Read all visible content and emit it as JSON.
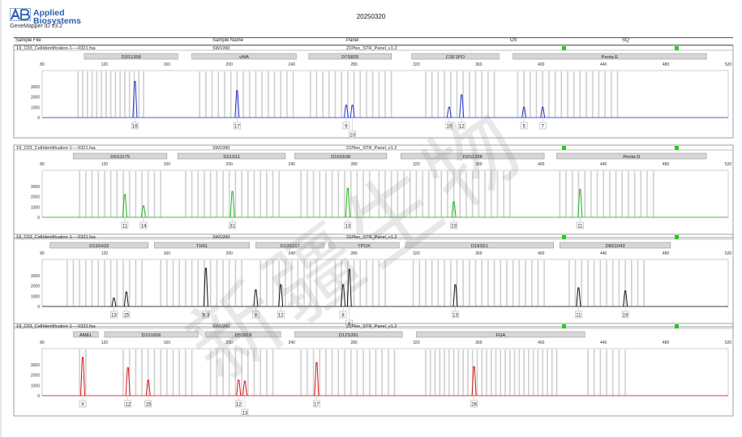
{
  "header": {
    "brand_line1": "Applied",
    "brand_line2": "Biosystems",
    "software": "GeneMapper ID v3.2",
    "report_title": "20250320",
    "columns": [
      "Sample File",
      "Sample Name",
      "Panel",
      "OS",
      "SQ"
    ]
  },
  "watermark_text": "新疆生物",
  "x_axis_ticks": [
    "80",
    "120",
    "160",
    "200",
    "240",
    "280",
    "320",
    "360",
    "400",
    "440",
    "480",
    "520"
  ],
  "panels": [
    {
      "sample_file": "19_C03_CellIdentification-1----0321.fsa",
      "sample_name": "SW1990",
      "panel_name": "21Plex_STR_Panel_v1.2",
      "color": "#2233cc",
      "y_ticks": [
        "3000",
        "2000",
        "1000",
        "0"
      ],
      "markers": [
        "D3S1358",
        "vWA",
        "D7S820",
        "CSF1PO",
        "Penta E"
      ],
      "alleles": [
        "16",
        "17",
        "9",
        "10",
        "10",
        "12",
        "5",
        "7"
      ]
    },
    {
      "sample_file": "19_C03_CellIdentification-1----0321.fsa",
      "sample_name": "SW1990",
      "panel_name": "21Plex_STR_Panel_v1.2",
      "color": "#20b020",
      "y_ticks": [
        "3000",
        "2000",
        "1000",
        "0"
      ],
      "markers": [
        "D6S1175",
        "D21S11",
        "D16S539",
        "D2S1338",
        "Penta D"
      ],
      "alleles": [
        "11",
        "14",
        "31",
        "13",
        "23",
        "11"
      ]
    },
    {
      "sample_file": "19_C03_CellIdentification-1----0321.fsa",
      "sample_name": "SW1990",
      "panel_name": "21Plex_STR_Panel_v1.2",
      "color": "#111111",
      "y_ticks": [
        "3000",
        "2000",
        "1000",
        "0"
      ],
      "markers": [
        "D19S433",
        "TH01",
        "D13S317",
        "TPOX",
        "D18S51",
        "D8S1043"
      ],
      "alleles": [
        "13",
        "15",
        "9.3",
        "8",
        "12",
        "8",
        "9",
        "13",
        "11",
        "19"
      ]
    },
    {
      "sample_file": "19_C03_CellIdentification-1----0321.fsa",
      "sample_name": "SW1990",
      "panel_name": "21Plex_STR_Panel_v1.2",
      "color": "#dd1111",
      "y_ticks": [
        "3000",
        "2000",
        "1000",
        "0"
      ],
      "markers": [
        "AMEL",
        "D1S1656",
        "D5S818",
        "D12S391",
        "FGA"
      ],
      "alleles": [
        "X",
        "12",
        "15",
        "12",
        "13",
        "17",
        "26"
      ]
    }
  ],
  "chart_data": [
    {
      "type": "line",
      "title": "",
      "channel": "blue",
      "xlim": [
        80,
        520
      ],
      "ylim": [
        0,
        4000
      ],
      "markers": [
        {
          "name": "D3S1358",
          "range": [
            107,
            167
          ]
        },
        {
          "name": "vWA",
          "range": [
            176,
            243
          ]
        },
        {
          "name": "D7S820",
          "range": [
            251,
            304
          ]
        },
        {
          "name": "CSF1PO",
          "range": [
            317,
            373
          ]
        },
        {
          "name": "Penta E",
          "range": [
            382,
            506
          ]
        }
      ],
      "peaks": [
        {
          "allele": "16",
          "x": 139.5,
          "height": 3500
        },
        {
          "allele": "17",
          "x": 205,
          "height": 2600
        },
        {
          "allele": "9",
          "x": 275,
          "height": 1200
        },
        {
          "allele": "10",
          "x": 279,
          "height": 1200
        },
        {
          "allele": "10",
          "x": 341,
          "height": 1000
        },
        {
          "allele": "12",
          "x": 349,
          "height": 2200
        },
        {
          "allele": "5",
          "x": 389,
          "height": 1000
        },
        {
          "allele": "7",
          "x": 401,
          "height": 1000
        }
      ],
      "bin_positions": [
        103,
        106,
        109,
        112,
        115,
        118,
        121,
        124,
        127,
        130,
        133,
        136,
        139,
        142,
        145,
        181,
        185,
        189,
        193,
        197,
        201,
        205,
        209,
        213,
        217,
        221,
        225,
        229,
        233,
        237,
        241,
        252,
        256,
        260,
        264,
        268,
        272,
        276,
        280,
        284,
        288,
        292,
        296,
        300,
        304,
        326,
        330,
        334,
        338,
        342,
        346,
        350,
        354,
        358,
        362,
        366,
        370,
        385,
        389,
        393,
        397,
        401,
        405,
        409,
        413,
        417,
        421,
        425,
        429,
        433,
        437,
        441,
        445,
        449
      ]
    },
    {
      "type": "line",
      "title": "",
      "channel": "green",
      "xlim": [
        80,
        520
      ],
      "ylim": [
        0,
        4000
      ],
      "markers": [
        {
          "name": "D6S1175",
          "range": [
            100,
            160
          ]
        },
        {
          "name": "D21S11",
          "range": [
            167,
            236
          ]
        },
        {
          "name": "D16S539",
          "range": [
            242,
            301
          ]
        },
        {
          "name": "D2S1338",
          "range": [
            310,
            402
          ]
        },
        {
          "name": "Penta D",
          "range": [
            410,
            506
          ]
        }
      ],
      "peaks": [
        {
          "allele": "11",
          "x": 133,
          "height": 2200
        },
        {
          "allele": "14",
          "x": 145,
          "height": 1100
        },
        {
          "allele": "31",
          "x": 202,
          "height": 2500
        },
        {
          "allele": "13",
          "x": 276,
          "height": 2800
        },
        {
          "allele": "23",
          "x": 344,
          "height": 1500
        },
        {
          "allele": "11",
          "x": 425,
          "height": 2700
        }
      ],
      "bin_positions": [
        104,
        108,
        112,
        116,
        120,
        124,
        128,
        132,
        136,
        140,
        144,
        148,
        152,
        156,
        172,
        176,
        180,
        184,
        188,
        192,
        196,
        200,
        204,
        208,
        212,
        216,
        220,
        224,
        228,
        232,
        246,
        250,
        254,
        258,
        262,
        266,
        270,
        274,
        278,
        282,
        286,
        290,
        296,
        300,
        304,
        308,
        312,
        316,
        320,
        324,
        328,
        332,
        336,
        340,
        344,
        348,
        352,
        356,
        360,
        364,
        368,
        372,
        376,
        380,
        412,
        416,
        420,
        424,
        428,
        432,
        436,
        440,
        444,
        448,
        452,
        456,
        460,
        464,
        468,
        472
      ]
    },
    {
      "type": "line",
      "title": "",
      "channel": "yellow",
      "xlim": [
        80,
        520
      ],
      "ylim": [
        0,
        4000
      ],
      "markers": [
        {
          "name": "D19S433",
          "range": [
            85,
            148
          ]
        },
        {
          "name": "TH01",
          "range": [
            152,
            213
          ]
        },
        {
          "name": "D13S317",
          "range": [
            217,
            261
          ]
        },
        {
          "name": "TPOX",
          "range": [
            264,
            309
          ]
        },
        {
          "name": "D18S51",
          "range": [
            313,
            408
          ]
        },
        {
          "name": "D8S1043",
          "range": [
            412,
            483
          ]
        }
      ],
      "peaks": [
        {
          "allele": "13",
          "x": 126,
          "height": 800
        },
        {
          "allele": "15",
          "x": 134,
          "height": 1400
        },
        {
          "allele": "9.3",
          "x": 185,
          "height": 3700
        },
        {
          "allele": "8",
          "x": 217,
          "height": 1600
        },
        {
          "allele": "12",
          "x": 233,
          "height": 2100
        },
        {
          "allele": "8",
          "x": 273,
          "height": 2100
        },
        {
          "allele": "9",
          "x": 277,
          "height": 3600
        },
        {
          "allele": "13",
          "x": 345,
          "height": 2100
        },
        {
          "allele": "11",
          "x": 424,
          "height": 1800
        },
        {
          "allele": "19",
          "x": 454,
          "height": 1500
        }
      ],
      "bin_positions": [
        96,
        100,
        104,
        108,
        112,
        116,
        120,
        124,
        128,
        132,
        136,
        140,
        144,
        156,
        160,
        164,
        168,
        172,
        176,
        180,
        184,
        188,
        192,
        196,
        200,
        204,
        208,
        220,
        224,
        228,
        232,
        236,
        240,
        244,
        248,
        252,
        256,
        268,
        272,
        276,
        280,
        284,
        288,
        292,
        296,
        300,
        318,
        322,
        326,
        330,
        334,
        338,
        342,
        346,
        350,
        354,
        358,
        362,
        366,
        370,
        374,
        378,
        382,
        386,
        390,
        394,
        398,
        402,
        418,
        422,
        426,
        430,
        434,
        438,
        442,
        446,
        450,
        454,
        458,
        462,
        466
      ]
    },
    {
      "type": "line",
      "title": "",
      "channel": "red",
      "xlim": [
        80,
        520
      ],
      "ylim": [
        0,
        4000
      ],
      "markers": [
        {
          "name": "AMEL",
          "range": [
            100,
            116
          ]
        },
        {
          "name": "D1S1656",
          "range": [
            120,
            180
          ]
        },
        {
          "name": "D5S818",
          "range": [
            185,
            233
          ]
        },
        {
          "name": "D12S391",
          "range": [
            242,
            311
          ]
        },
        {
          "name": "FGA",
          "range": [
            320,
            428
          ]
        }
      ],
      "peaks": [
        {
          "allele": "X",
          "x": 106,
          "height": 3700
        },
        {
          "allele": "12",
          "x": 135,
          "height": 2700
        },
        {
          "allele": "15",
          "x": 148,
          "height": 1500
        },
        {
          "allele": "12",
          "x": 206,
          "height": 1500
        },
        {
          "allele": "13",
          "x": 210,
          "height": 1400
        },
        {
          "allele": "17",
          "x": 256,
          "height": 3200
        },
        {
          "allele": "26",
          "x": 357,
          "height": 2800
        }
      ],
      "bin_positions": [
        104,
        108,
        132,
        136,
        140,
        144,
        148,
        152,
        156,
        160,
        164,
        168,
        172,
        176,
        188,
        192,
        196,
        200,
        204,
        208,
        212,
        216,
        220,
        224,
        228,
        246,
        250,
        254,
        258,
        262,
        266,
        270,
        274,
        278,
        282,
        286,
        290,
        294,
        298,
        302,
        306,
        326,
        329,
        332,
        335,
        338,
        341,
        344,
        347,
        350,
        353,
        356,
        359,
        362,
        365,
        368,
        371,
        374,
        377,
        380,
        383,
        386,
        389,
        392,
        395,
        398,
        401,
        404,
        407,
        410,
        430,
        434,
        438,
        442,
        446,
        450,
        454
      ]
    }
  ]
}
